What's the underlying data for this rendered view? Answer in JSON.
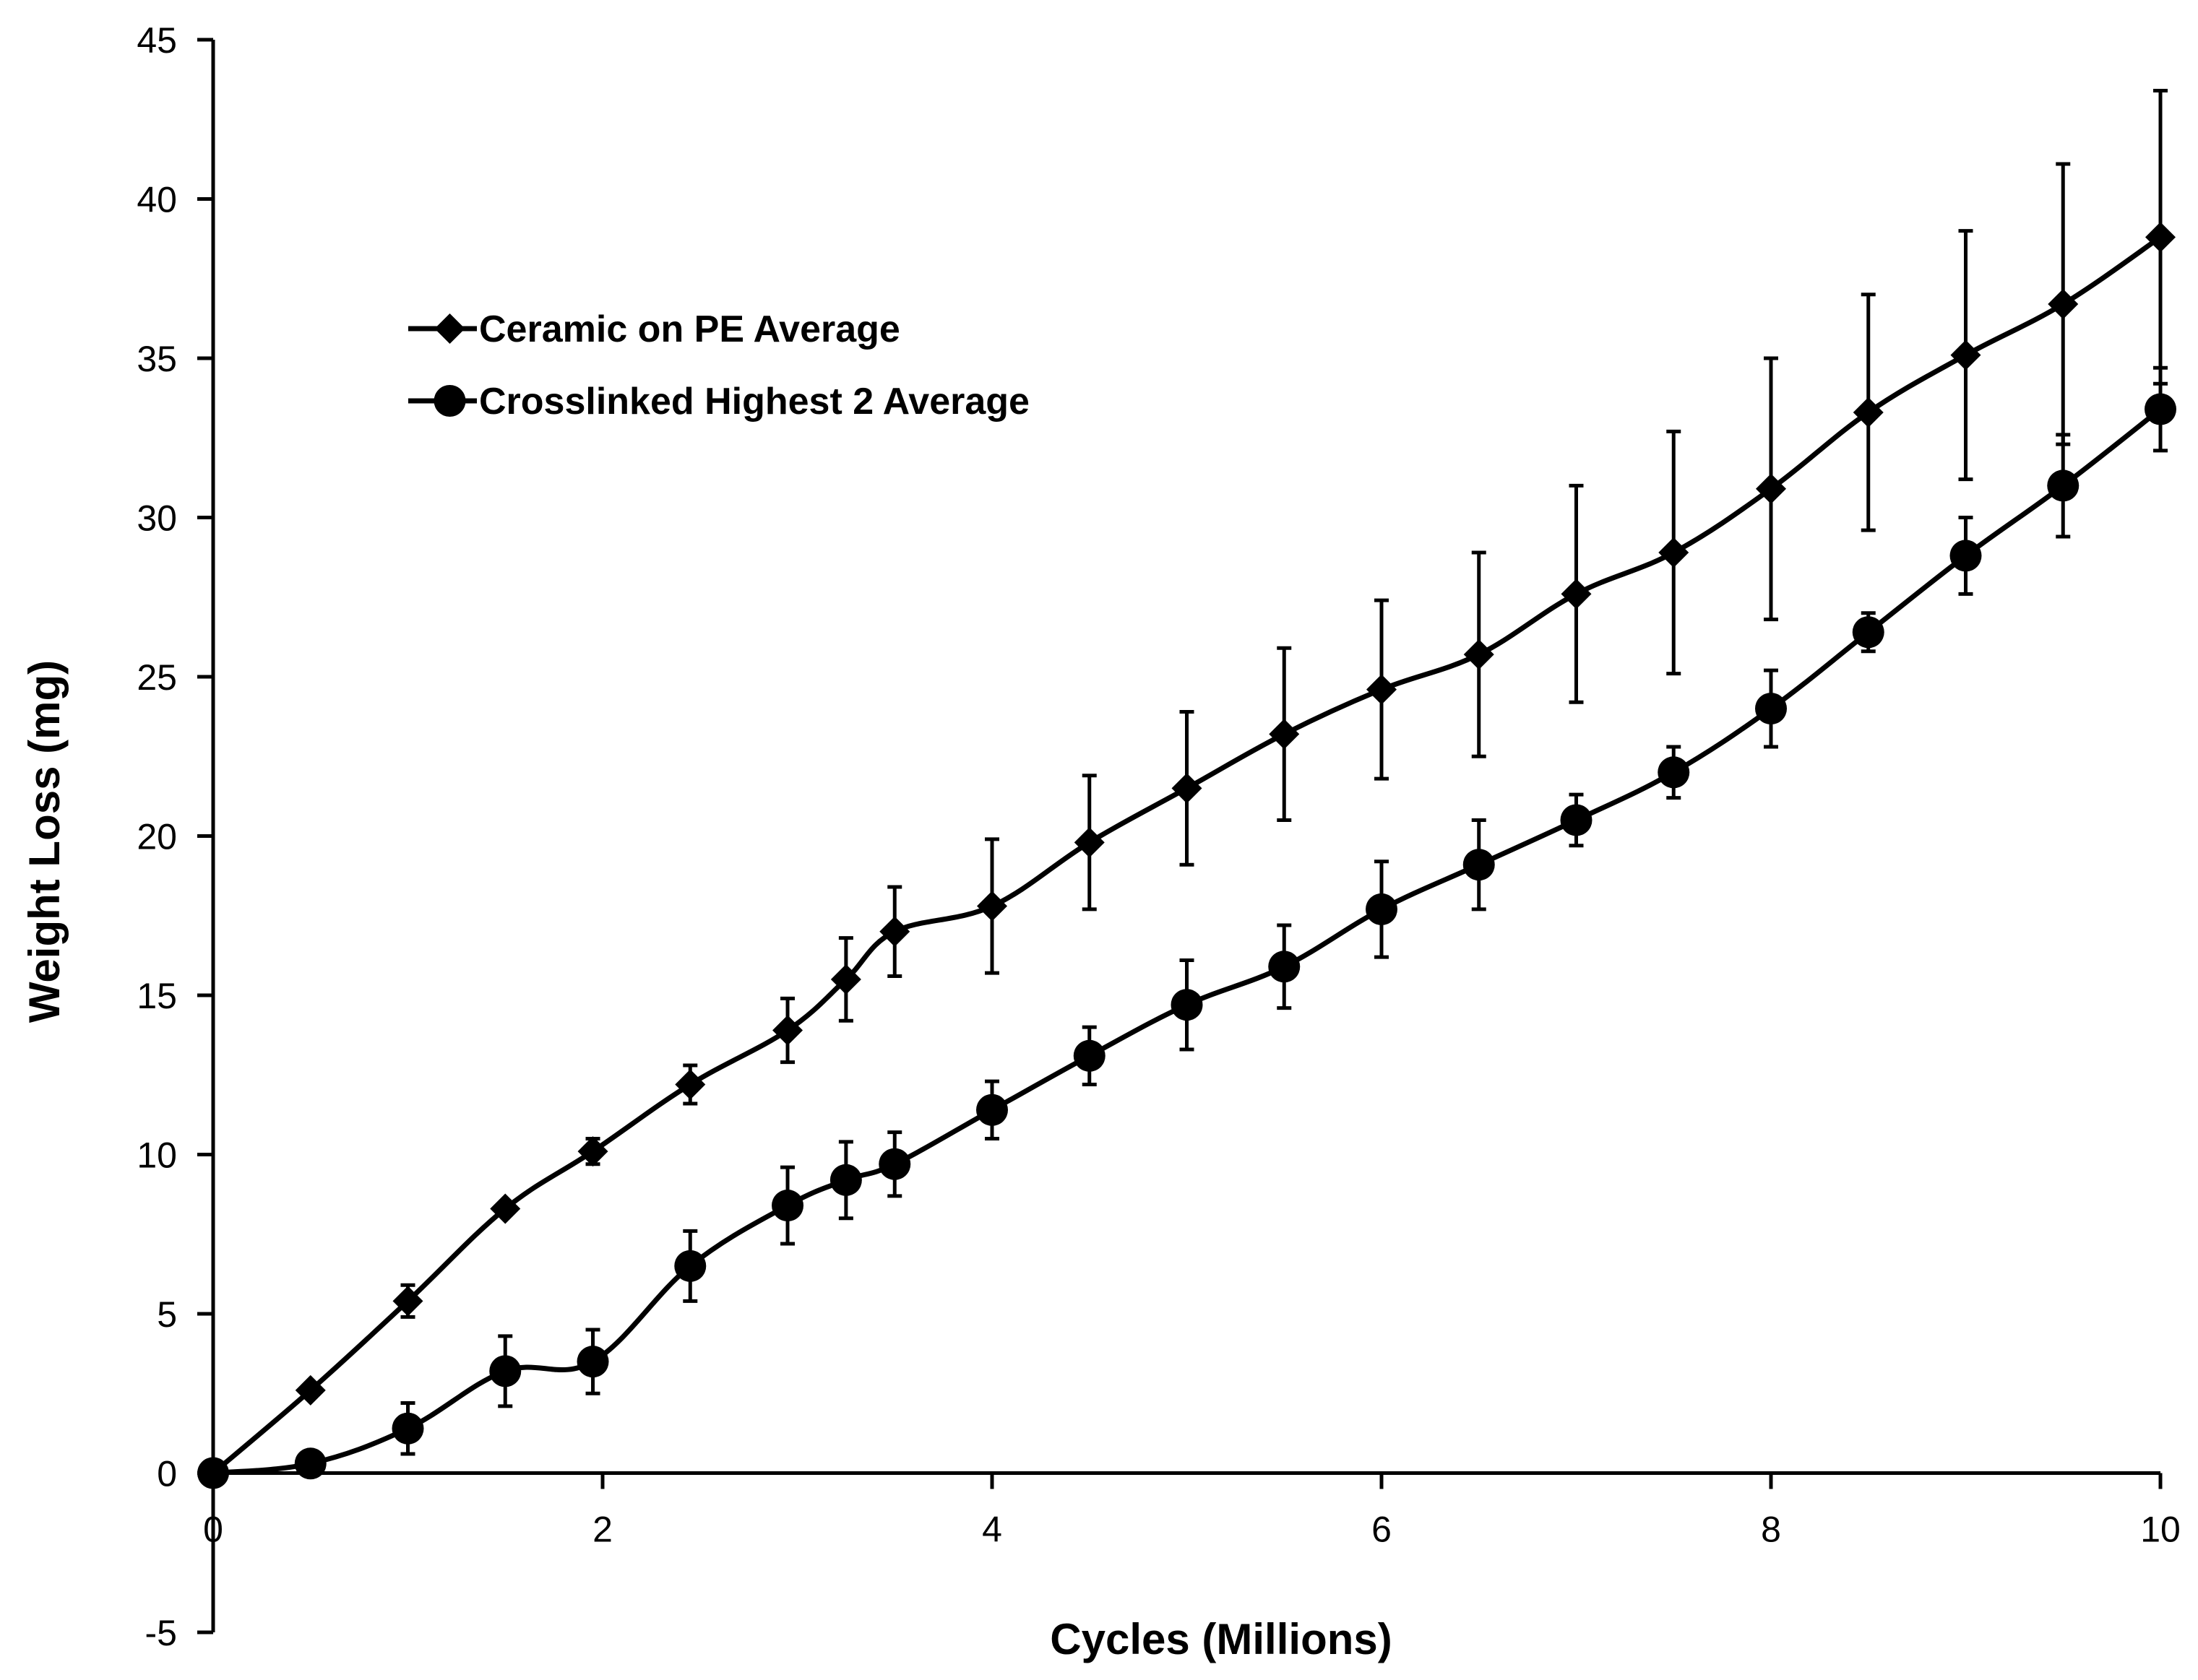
{
  "chart_data": {
    "type": "line",
    "title": "",
    "xlabel": "Cycles (Millions)",
    "ylabel": "Weight Loss (mg)",
    "xlim": [
      0,
      10
    ],
    "ylim": [
      -5,
      45
    ],
    "xticks": [
      0,
      2,
      4,
      6,
      8,
      10
    ],
    "yticks": [
      -5,
      0,
      5,
      10,
      15,
      20,
      25,
      30,
      35,
      40,
      45
    ],
    "grid": false,
    "legend_position": "upper-left",
    "series": [
      {
        "name": "Ceramic on PE Average",
        "marker": "diamond",
        "x": [
          0,
          0.5,
          1,
          1.5,
          1.95,
          2.45,
          2.95,
          3.25,
          3.5,
          4,
          4.5,
          5,
          5.5,
          6,
          6.5,
          7,
          7.5,
          8,
          8.5,
          9,
          9.5,
          10
        ],
        "y": [
          0,
          2.6,
          5.4,
          8.3,
          10.1,
          12.2,
          13.9,
          15.5,
          17.0,
          17.8,
          19.8,
          21.5,
          23.2,
          24.6,
          25.7,
          27.6,
          28.9,
          30.9,
          33.3,
          35.1,
          36.7,
          38.8
        ],
        "error": [
          0,
          0,
          0.5,
          0,
          0.4,
          0.6,
          1.0,
          1.3,
          1.4,
          2.1,
          2.1,
          2.4,
          2.7,
          2.8,
          3.2,
          3.4,
          3.8,
          4.1,
          3.7,
          3.9,
          4.4,
          4.6
        ]
      },
      {
        "name": "Crosslinked  Highest 2 Average",
        "marker": "circle",
        "x": [
          0,
          0.5,
          1,
          1.5,
          1.95,
          2.45,
          2.95,
          3.25,
          3.5,
          4,
          4.5,
          5,
          5.5,
          6,
          6.5,
          7,
          7.5,
          8,
          8.5,
          9,
          9.5,
          10
        ],
        "y": [
          0,
          0.3,
          1.4,
          3.2,
          3.5,
          6.5,
          8.4,
          9.2,
          9.7,
          11.4,
          13.1,
          14.7,
          15.9,
          17.7,
          19.1,
          20.5,
          22.0,
          24.0,
          26.4,
          28.8,
          31.0,
          33.4
        ],
        "error": [
          0,
          0.3,
          0.8,
          1.1,
          1.0,
          1.1,
          1.2,
          1.2,
          1.0,
          0.9,
          0.9,
          1.4,
          1.3,
          1.5,
          1.4,
          0.8,
          0.8,
          1.2,
          0.6,
          1.2,
          1.6,
          1.3
        ]
      }
    ]
  }
}
